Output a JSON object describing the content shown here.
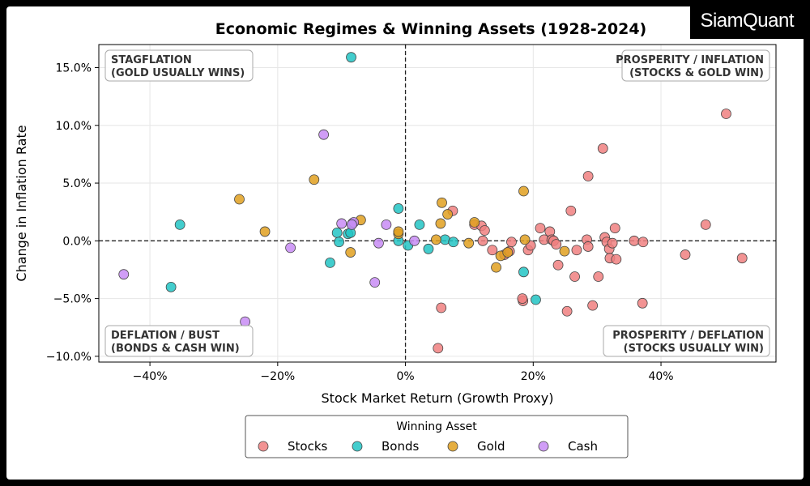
{
  "logo": "SiamQuant",
  "chart_data": {
    "type": "scatter",
    "title": "Economic Regimes & Winning Assets (1928-2024)",
    "xlabel": "Stock Market Return (Growth Proxy)",
    "ylabel": "Change in Inflation Rate",
    "xlim": [
      -48,
      58
    ],
    "ylim": [
      -10.5,
      17
    ],
    "xticks": [
      -40,
      -20,
      0,
      20,
      40
    ],
    "xtick_labels": [
      "−40%",
      "−20%",
      "0%",
      "20%",
      "40%"
    ],
    "yticks": [
      -10,
      -5,
      0,
      5,
      10,
      15
    ],
    "ytick_labels": [
      "−10.0%",
      "−5.0%",
      "0.0%",
      "5.0%",
      "10.0%",
      "15.0%"
    ],
    "grid": true,
    "reference_lines": {
      "x": 0,
      "y": 0
    },
    "quadrant_labels": [
      {
        "lines": [
          "STAGFLATION",
          "(GOLD USUALLY WINS)"
        ],
        "position": "top-left"
      },
      {
        "lines": [
          "PROSPERITY / INFLATION",
          "(STOCKS & GOLD WIN)"
        ],
        "position": "top-right"
      },
      {
        "lines": [
          "DEFLATION / BUST",
          "(BONDS & CASH WIN)"
        ],
        "position": "bottom-left"
      },
      {
        "lines": [
          "PROSPERITY / DEFLATION",
          "(STOCKS USUALLY WIN)"
        ],
        "position": "bottom-right"
      }
    ],
    "legend": {
      "title": "Winning Asset",
      "placement": "bottom-center"
    },
    "series": [
      {
        "name": "Stocks",
        "color": "#f08080",
        "points": [
          [
            50.2,
            11.0
          ],
          [
            30.9,
            8.0
          ],
          [
            28.6,
            5.6
          ],
          [
            25.9,
            2.6
          ],
          [
            47,
            1.4
          ],
          [
            43.8,
            -1.2
          ],
          [
            52.7,
            -1.5
          ],
          [
            37.1,
            -5.4
          ],
          [
            29.3,
            -5.6
          ],
          [
            25.3,
            -6.1
          ],
          [
            18.4,
            -5.2
          ],
          [
            18.3,
            -5.0
          ],
          [
            5.6,
            -5.8
          ],
          [
            5.1,
            -9.3
          ],
          [
            7.4,
            2.6
          ],
          [
            10.8,
            1.4
          ],
          [
            11.9,
            1.3
          ],
          [
            12.4,
            0.9
          ],
          [
            12.1,
            0
          ],
          [
            13.6,
            -0.8
          ],
          [
            15.5,
            -1.2
          ],
          [
            16.6,
            -0.1
          ],
          [
            16.3,
            -0.9
          ],
          [
            19.2,
            -0.8
          ],
          [
            19.6,
            -0.4
          ],
          [
            21.1,
            1.1
          ],
          [
            21.7,
            0.1
          ],
          [
            22.6,
            0.8
          ],
          [
            22.9,
            0.1
          ],
          [
            23.2,
            0
          ],
          [
            23.6,
            -0.3
          ],
          [
            23.9,
            -2.1
          ],
          [
            26.5,
            -3.1
          ],
          [
            26.8,
            -0.8
          ],
          [
            28.4,
            0.1
          ],
          [
            28.6,
            -0.5
          ],
          [
            30.2,
            -3.1
          ],
          [
            31.2,
            0.3
          ],
          [
            31.5,
            -0.1
          ],
          [
            31.9,
            -0.7
          ],
          [
            32.0,
            -1.5
          ],
          [
            32.8,
            1.1
          ],
          [
            33.0,
            -1.6
          ],
          [
            32.4,
            -0.2
          ],
          [
            35.8,
            0
          ],
          [
            37.2,
            -0.1
          ]
        ]
      },
      {
        "name": "Bonds",
        "color": "#22c4c4",
        "points": [
          [
            -35.3,
            1.4
          ],
          [
            -36.7,
            -4.0
          ],
          [
            -11.8,
            -1.9
          ],
          [
            -10.7,
            0.7
          ],
          [
            -10.4,
            -0.1
          ],
          [
            -9.0,
            0.6
          ],
          [
            -8.6,
            0.7
          ],
          [
            -8.3,
            1.5
          ],
          [
            -8.5,
            15.9
          ],
          [
            -1.1,
            2.8
          ],
          [
            -1.1,
            0
          ],
          [
            0.4,
            -0.4
          ],
          [
            2.2,
            1.4
          ],
          [
            3.6,
            -0.7
          ],
          [
            6.2,
            0.1
          ],
          [
            7.5,
            -0.1
          ],
          [
            18.5,
            -2.7
          ],
          [
            20.4,
            -5.1
          ]
        ]
      },
      {
        "name": "Gold",
        "color": "#e0a020",
        "points": [
          [
            -26,
            3.6
          ],
          [
            -22,
            0.8
          ],
          [
            -14.3,
            5.3
          ],
          [
            -8.6,
            -1.0
          ],
          [
            -7.0,
            1.8
          ],
          [
            -1.1,
            0.6
          ],
          [
            -1.1,
            0.8
          ],
          [
            4.8,
            0.1
          ],
          [
            5.7,
            3.3
          ],
          [
            6.6,
            2.3
          ],
          [
            5.5,
            1.5
          ],
          [
            9.9,
            -0.2
          ],
          [
            10.8,
            1.6
          ],
          [
            14.2,
            -2.3
          ],
          [
            14.9,
            -1.3
          ],
          [
            16.0,
            -1.0
          ],
          [
            18.5,
            4.3
          ],
          [
            18.7,
            0.1
          ],
          [
            24.9,
            -0.9
          ]
        ]
      },
      {
        "name": "Cash",
        "color": "#c88cf5",
        "points": [
          [
            -44.1,
            -2.9
          ],
          [
            -25.1,
            -7.0
          ],
          [
            -18.0,
            -0.6
          ],
          [
            -12.8,
            9.2
          ],
          [
            -10.0,
            1.5
          ],
          [
            -8.1,
            1.6
          ],
          [
            -8.4,
            1.4
          ],
          [
            -4.8,
            -3.6
          ],
          [
            -4.2,
            -0.2
          ],
          [
            -3.0,
            1.4
          ],
          [
            1.4,
            0.0
          ]
        ]
      }
    ]
  }
}
